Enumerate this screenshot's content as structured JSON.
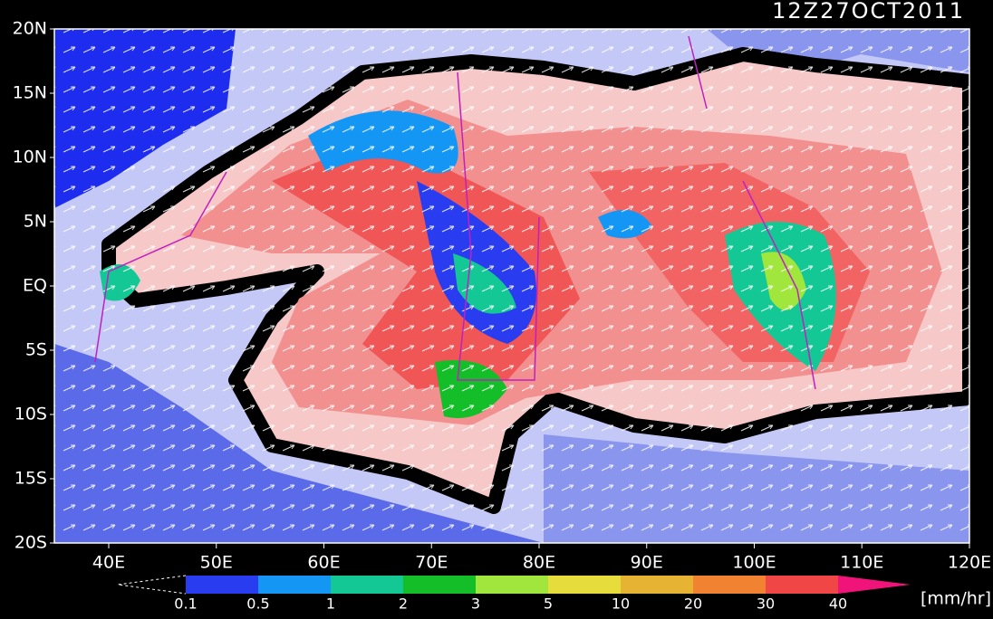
{
  "title": "12Z27OCT2011",
  "lat_labels": [
    "20N",
    "15N",
    "10N",
    "5N",
    "EQ",
    "5S",
    "10S",
    "15S",
    "20S"
  ],
  "lon_labels": [
    "40E",
    "50E",
    "60E",
    "70E",
    "80E",
    "90E",
    "100E",
    "110E",
    "120E"
  ],
  "colorbar": {
    "labels": [
      "0.1",
      "0.5",
      "1",
      "2",
      "3",
      "5",
      "10",
      "20",
      "30",
      "40"
    ],
    "colors": [
      "#2a3cf0",
      "#1496f5",
      "#14c896",
      "#14be28",
      "#a0e63c",
      "#e6dc3c",
      "#e6b432",
      "#f08232",
      "#f04646"
    ],
    "units": "[mm/hr]"
  }
}
